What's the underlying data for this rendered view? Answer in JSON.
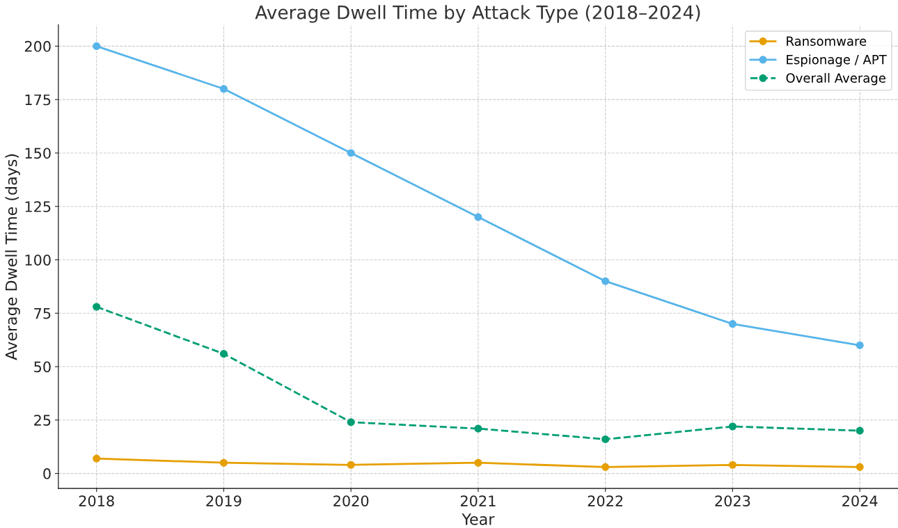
{
  "chart_data": {
    "type": "line",
    "title": "Average Dwell Time by Attack Type (2018–2024)",
    "xlabel": "Year",
    "ylabel": "Average Dwell Time (days)",
    "x": [
      2018,
      2019,
      2020,
      2021,
      2022,
      2023,
      2024
    ],
    "series": [
      {
        "name": "Ransomware",
        "color": "#e69f00",
        "values": [
          7,
          5,
          4,
          5,
          3,
          4,
          3
        ]
      },
      {
        "name": "Espionage / APT",
        "color": "#56b4e9",
        "values": [
          200,
          180,
          150,
          120,
          90,
          70,
          60
        ]
      },
      {
        "name": "Overall Average",
        "color": "#009e73",
        "values": [
          78,
          56,
          24,
          21,
          16,
          22,
          20
        ],
        "line_style": "dashed"
      }
    ],
    "xlim": [
      2017.7,
      2024.3
    ],
    "xticks": [
      2018,
      2019,
      2020,
      2021,
      2022,
      2023,
      2024
    ],
    "ylim": [
      -7,
      210
    ],
    "yticks": [
      0,
      25,
      50,
      75,
      100,
      125,
      150,
      175,
      200
    ],
    "grid": true,
    "legend": "top right",
    "marker": "circle"
  }
}
